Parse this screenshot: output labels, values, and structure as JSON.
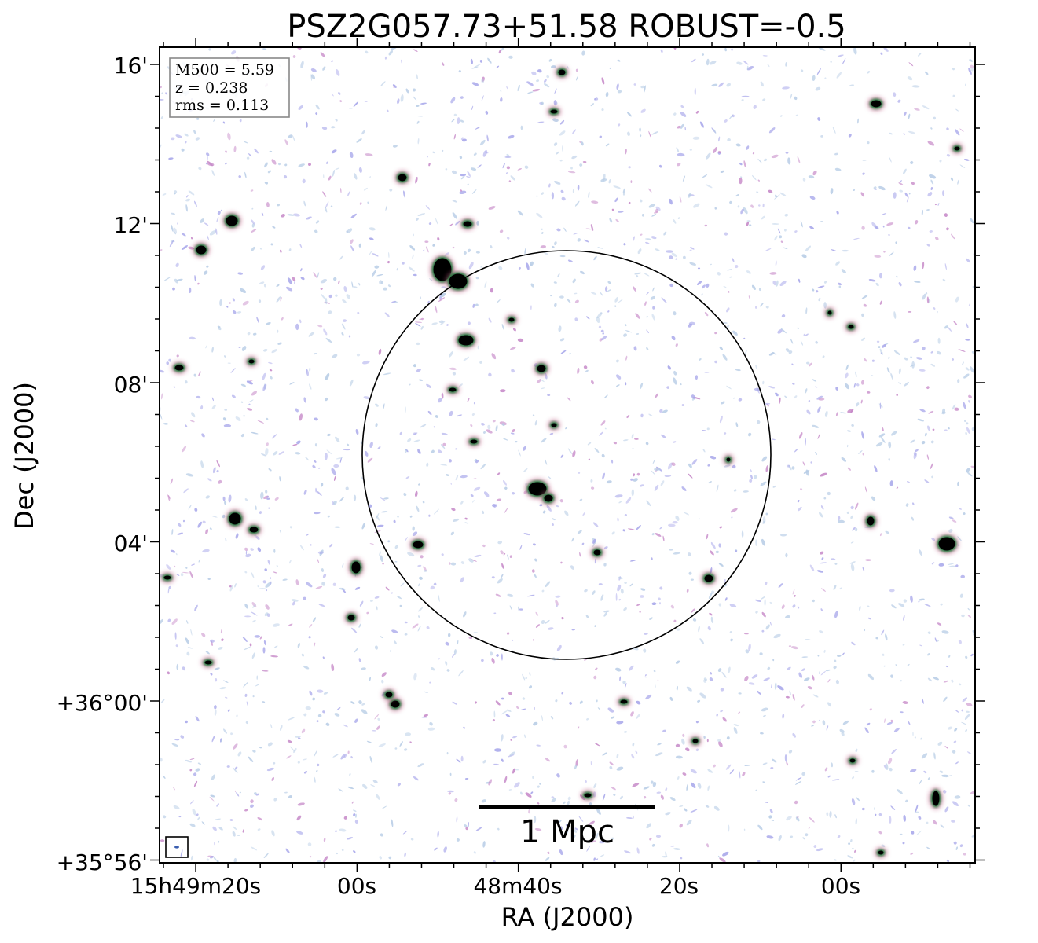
{
  "title": "PSZ2G057.73+51.58 ROBUST=-0.5",
  "axes": {
    "xlabel": "RA (J2000)",
    "ylabel": "Dec (J2000)",
    "ra_ticks": [
      "15h49m20s",
      "00s",
      "48m40s",
      "20s",
      "00s"
    ],
    "dec_ticks": [
      "16'",
      "12'",
      "08'",
      "04'",
      "+36°00'",
      "+35°56'"
    ]
  },
  "info_box": {
    "m500": "M500 = 5.59",
    "z": "z = 0.238",
    "rms": "rms = 0.113"
  },
  "scale_bar": {
    "label": "1 Mpc"
  },
  "colors": {
    "background": "#ffffff",
    "noise_light": "#b8cde6",
    "noise_blue": "#a7a6ea",
    "noise_pink": "#c689c8",
    "source_core": "#000000",
    "source_green": "#1f7a3a",
    "source_rim": "#b94f7a"
  }
}
